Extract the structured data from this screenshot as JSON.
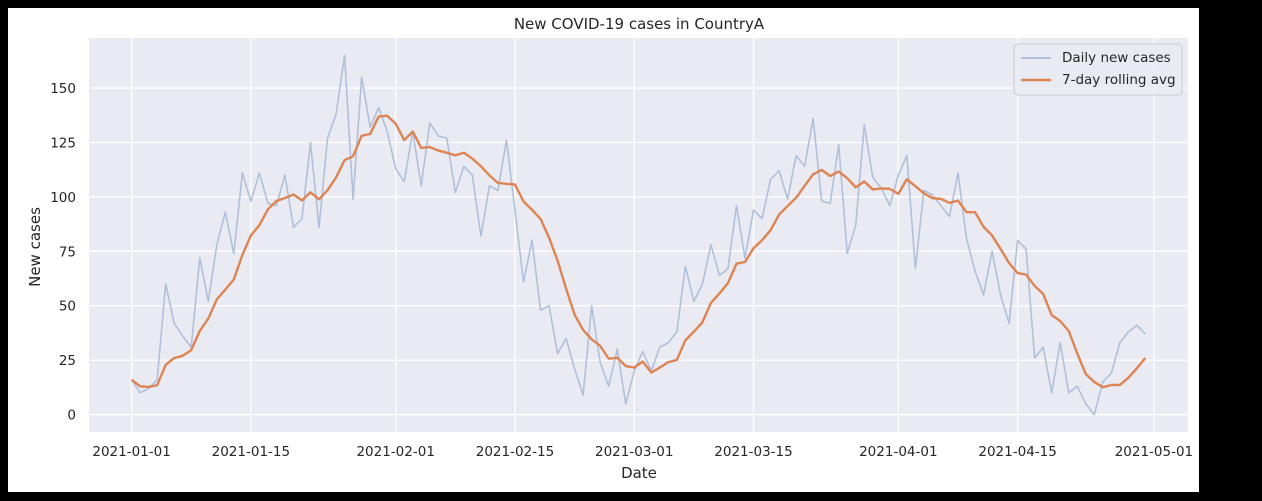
{
  "chart_data": {
    "type": "line",
    "title": "New COVID-19 cases in CountryA",
    "xlabel": "Date",
    "ylabel": "New cases",
    "x_start": "2021-01-01",
    "x_end": "2021-04-30",
    "xlim": [
      "2020-12-27",
      "2021-05-05"
    ],
    "ylim": [
      -8,
      173
    ],
    "x_ticks": [
      "2021-01-01",
      "2021-01-15",
      "2021-02-01",
      "2021-02-15",
      "2021-03-01",
      "2021-03-15",
      "2021-04-01",
      "2021-04-15",
      "2021-05-01"
    ],
    "y_ticks": [
      0,
      25,
      50,
      75,
      100,
      125,
      150
    ],
    "grid": true,
    "legend_position": "top-right",
    "colors": {
      "figure_bg": "#ffffff",
      "axes_bg": "#eaeaf2",
      "grid": "#ffffff",
      "daily": "#b0c0da",
      "rolling": "#dd8452",
      "text": "#262626"
    },
    "series": [
      {
        "name": "Daily new cases",
        "values": [
          16,
          10,
          12,
          16,
          60,
          42,
          36,
          31,
          72,
          52,
          78,
          93,
          74,
          111,
          98,
          111,
          97,
          96,
          110,
          86,
          90,
          125,
          86,
          127,
          138,
          165,
          99,
          155,
          132,
          141,
          130,
          113,
          107,
          130,
          105,
          134,
          128,
          127,
          102,
          114,
          110,
          82,
          105,
          103,
          126,
          94,
          61,
          80,
          48,
          50,
          28,
          35,
          21,
          9,
          50,
          24,
          13,
          30,
          5,
          20,
          29,
          20,
          31,
          33,
          38,
          68,
          52,
          60,
          78,
          64,
          67,
          96,
          72,
          94,
          90,
          108,
          112,
          99,
          119,
          114,
          136,
          98,
          97,
          124,
          74,
          87,
          133,
          109,
          104,
          96,
          110,
          119,
          67,
          103,
          101,
          96,
          91,
          111,
          81,
          66,
          55,
          75,
          55,
          42,
          80,
          76,
          26,
          31,
          10,
          33,
          10,
          13,
          5,
          0,
          15,
          19,
          33,
          38,
          41,
          37
        ]
      },
      {
        "name": "7-day rolling avg",
        "values": [
          16,
          13,
          12.7,
          13.5,
          22.8,
          26,
          27,
          29.6,
          38.4,
          44.1,
          52.9,
          57.4,
          62.1,
          73.3,
          82.3,
          87,
          94.3,
          98.1,
          99.5,
          101.1,
          98.4,
          102.1,
          98.9,
          103.1,
          108.9,
          116.9,
          118.7,
          128.1,
          128.9,
          136.9,
          137.3,
          133.6,
          126.1,
          130,
          122.5,
          122.9,
          121.3,
          120.3,
          119.1,
          120.3,
          117.6,
          114.1,
          109.9,
          106.4,
          106,
          105.7,
          97.9,
          94.1,
          89.9,
          81.3,
          70.7,
          57.9,
          45.9,
          38.9,
          34.6,
          31.6,
          25.7,
          26.1,
          22.3,
          21.6,
          24.4,
          19.3,
          21.6,
          24.1,
          25.1,
          34.1,
          38.1,
          42.4,
          51.3,
          55.6,
          60.4,
          69.3,
          70.1,
          76.4,
          80.1,
          84.7,
          91.9,
          95.8,
          99.6,
          105.1,
          110.4,
          112.4,
          109.6,
          111.7,
          108.6,
          104.4,
          107.1,
          103.4,
          103.9,
          103.7,
          101.4,
          108.1,
          104.9,
          101.7,
          99.4,
          99.1,
          97.3,
          98.3,
          93,
          93,
          86.3,
          82.3,
          76.1,
          69.6,
          65,
          64.3,
          59.1,
          55.4,
          45.7,
          43,
          38.4,
          28.1,
          18.6,
          15,
          12.6,
          13.6,
          13.6,
          16.9,
          21.3,
          26
        ]
      }
    ]
  }
}
